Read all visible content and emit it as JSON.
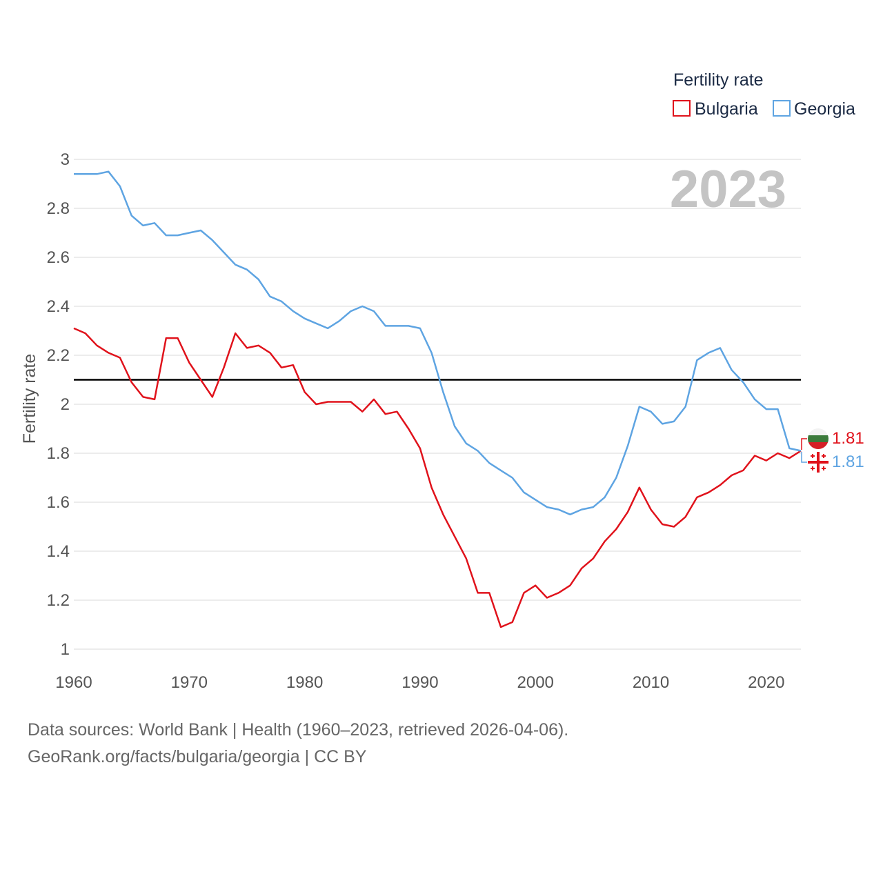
{
  "chart_data": {
    "type": "line",
    "ylabel": "Fertility rate",
    "xlabel": "",
    "ylim": [
      1,
      3
    ],
    "xlim": [
      1960,
      2023
    ],
    "grid": true,
    "yticks": [
      1,
      1.2,
      1.4,
      1.6,
      1.8,
      2,
      2.2,
      2.4,
      2.6,
      2.8,
      3
    ],
    "ytick_labels": [
      "1",
      "1.2",
      "1.4",
      "1.6",
      "1.8",
      "2",
      "2.2",
      "2.4",
      "2.6",
      "2.8",
      "3"
    ],
    "xticks": [
      1960,
      1970,
      1980,
      1990,
      2000,
      2010,
      2020
    ],
    "xtick_labels": [
      "1960",
      "1970",
      "1980",
      "1990",
      "2000",
      "2010",
      "2020"
    ],
    "reference_line": 2.1,
    "year_stamp": "2023",
    "legend": {
      "title": "Fertility rate",
      "placement": "top-right"
    },
    "x": [
      1960,
      1961,
      1962,
      1963,
      1964,
      1965,
      1966,
      1967,
      1968,
      1969,
      1970,
      1971,
      1972,
      1973,
      1974,
      1975,
      1976,
      1977,
      1978,
      1979,
      1980,
      1981,
      1982,
      1983,
      1984,
      1985,
      1986,
      1987,
      1988,
      1989,
      1990,
      1991,
      1992,
      1993,
      1994,
      1995,
      1996,
      1997,
      1998,
      1999,
      2000,
      2001,
      2002,
      2003,
      2004,
      2005,
      2006,
      2007,
      2008,
      2009,
      2010,
      2011,
      2012,
      2013,
      2014,
      2015,
      2016,
      2017,
      2018,
      2019,
      2020,
      2021,
      2022,
      2023
    ],
    "series": [
      {
        "name": "Bulgaria",
        "color": "#e0121b",
        "end_label": "1.81",
        "flag_icon": "bulgaria-flag-icon",
        "values": [
          2.31,
          2.29,
          2.24,
          2.21,
          2.19,
          2.09,
          2.03,
          2.02,
          2.27,
          2.27,
          2.17,
          2.1,
          2.03,
          2.15,
          2.29,
          2.23,
          2.24,
          2.21,
          2.15,
          2.16,
          2.05,
          2.0,
          2.01,
          2.01,
          2.01,
          1.97,
          2.02,
          1.96,
          1.97,
          1.9,
          1.82,
          1.66,
          1.55,
          1.46,
          1.37,
          1.23,
          1.23,
          1.09,
          1.11,
          1.23,
          1.26,
          1.21,
          1.23,
          1.26,
          1.33,
          1.37,
          1.44,
          1.49,
          1.56,
          1.66,
          1.57,
          1.51,
          1.5,
          1.54,
          1.62,
          1.64,
          1.67,
          1.71,
          1.73,
          1.79,
          1.77,
          1.8,
          1.78,
          1.81
        ]
      },
      {
        "name": "Georgia",
        "color": "#5ea4e2",
        "end_label": "1.81",
        "flag_icon": "georgia-flag-icon",
        "values": [
          2.94,
          2.94,
          2.94,
          2.95,
          2.89,
          2.77,
          2.73,
          2.74,
          2.69,
          2.69,
          2.7,
          2.71,
          2.67,
          2.62,
          2.57,
          2.55,
          2.51,
          2.44,
          2.42,
          2.38,
          2.35,
          2.33,
          2.31,
          2.34,
          2.38,
          2.4,
          2.38,
          2.32,
          2.32,
          2.32,
          2.31,
          2.21,
          2.05,
          1.91,
          1.84,
          1.81,
          1.76,
          1.73,
          1.7,
          1.64,
          1.61,
          1.58,
          1.57,
          1.55,
          1.57,
          1.58,
          1.62,
          1.7,
          1.83,
          1.99,
          1.97,
          1.92,
          1.93,
          1.99,
          2.18,
          2.21,
          2.23,
          2.14,
          2.09,
          2.02,
          1.98,
          1.98,
          1.82,
          1.81
        ]
      }
    ]
  },
  "footer": {
    "sources": "Data sources: World Bank | Health (1960–2023, retrieved 2026-04-06).",
    "credit": "GeoRank.org/facts/bulgaria/georgia | CC BY"
  }
}
